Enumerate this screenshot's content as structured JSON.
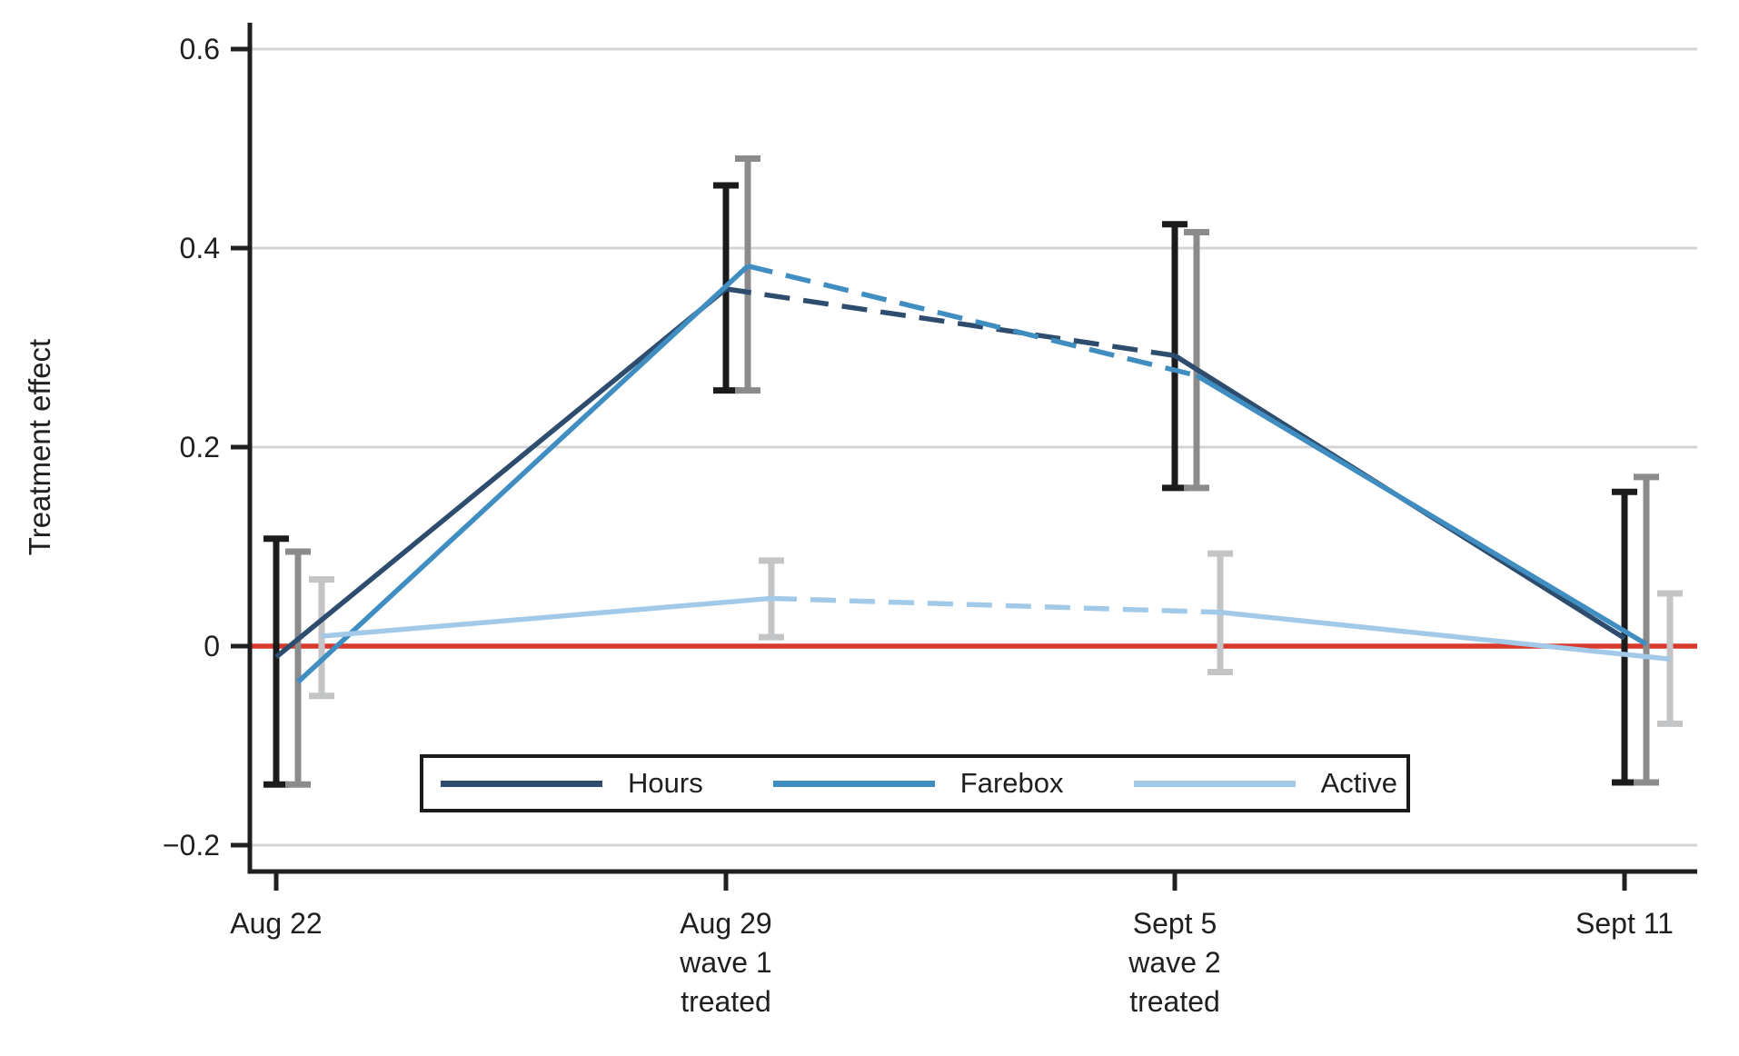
{
  "figure": {
    "ylabel": "Treatment effect",
    "legend": [
      {
        "name": "Hours",
        "color": "#2e4d6e"
      },
      {
        "name": "Farebox",
        "color": "#3f8dc1"
      },
      {
        "name": "Active",
        "color": "#a2c9e7"
      }
    ]
  },
  "chart_data": {
    "type": "line",
    "title": "",
    "xlabel": "",
    "ylabel": "Treatment effect",
    "grid": true,
    "grid_color": "#d4d4d4",
    "zero_line_color": "#d8392c",
    "legend_position": "inside-bottom-center",
    "ylim": [
      -0.27,
      0.65
    ],
    "y_ticks": [
      {
        "label": "0.6",
        "value": 0.6
      },
      {
        "label": "0.4",
        "value": 0.4
      },
      {
        "label": "0.2",
        "value": 0.2
      },
      {
        "label": "0",
        "value": 0
      },
      {
        "label": "−0.2",
        "value": -0.2
      }
    ],
    "categories": [
      "Aug 22",
      "Aug 29",
      "Sept 5",
      "Sept 11"
    ],
    "x_tick_labels": [
      [
        "Aug 22"
      ],
      [
        "Aug 29",
        "wave 1",
        "treated"
      ],
      [
        "Sept 5",
        "wave 2",
        "treated"
      ],
      [
        "Sept 11"
      ]
    ],
    "series": [
      {
        "name": "Hours",
        "color": "#2e4d6e",
        "ci_color": "#1b1b1b",
        "values": [
          -0.011,
          0.359,
          0.292,
          0.008
        ],
        "ci_low": [
          -0.139,
          0.257,
          0.159,
          -0.137
        ],
        "ci_high": [
          0.108,
          0.463,
          0.424,
          0.155
        ],
        "dashed_segments": [
          [
            1,
            2
          ]
        ]
      },
      {
        "name": "Farebox",
        "color": "#3f8dc1",
        "ci_color": "#8b8b8b",
        "values": [
          -0.036,
          0.382,
          0.272,
          0.002
        ],
        "ci_low": [
          -0.139,
          0.257,
          0.159,
          -0.137
        ],
        "ci_high": [
          0.095,
          0.49,
          0.416,
          0.17
        ],
        "dashed_segments": [
          [
            1,
            2
          ]
        ]
      },
      {
        "name": "Active",
        "color": "#a2c9e7",
        "ci_color": "#c2c4c6",
        "values": [
          0.01,
          0.048,
          0.034,
          -0.013
        ],
        "ci_low": [
          -0.05,
          0.009,
          -0.026,
          -0.078
        ],
        "ci_high": [
          0.067,
          0.086,
          0.093,
          0.053
        ],
        "dashed_segments": [
          [
            1,
            2
          ]
        ]
      }
    ]
  }
}
